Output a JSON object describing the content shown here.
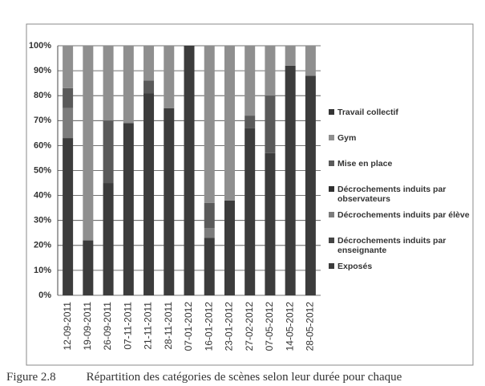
{
  "chart_data": {
    "type": "stacked_bar",
    "categories": [
      "12-09-2011",
      "19-09-2011",
      "26-09-2011",
      "07-11-2011",
      "21-11-2011",
      "28-11-2011",
      "07-01-2012",
      "16-01-2012",
      "23-01-2012",
      "27-02-2012",
      "07-05-2012",
      "14-05-2012",
      "28-05-2012"
    ],
    "series": [
      {
        "name": "Exposés",
        "color": "#3c3c3c",
        "values": [
          63,
          22,
          45,
          69,
          81,
          75,
          100,
          23,
          38,
          67,
          57,
          92,
          88
        ]
      },
      {
        "name": "Décrochements induits par enseignante",
        "color": "#444444",
        "values": [
          0,
          0,
          0,
          0,
          0,
          0,
          0,
          0,
          0,
          0,
          0,
          0,
          0
        ]
      },
      {
        "name": "Décrochements induits par élève",
        "color": "#7c7c7c",
        "values": [
          12,
          0,
          0,
          0,
          0,
          0,
          0,
          4,
          0,
          0,
          0,
          0,
          0
        ]
      },
      {
        "name": "Décrochements induits par observateurs",
        "color": "#303030",
        "values": [
          0,
          0,
          0,
          0,
          0,
          0,
          0,
          0,
          0,
          0,
          0,
          0,
          0
        ]
      },
      {
        "name": "Mise en place",
        "color": "#5a5a5a",
        "values": [
          8,
          0,
          25,
          0,
          5,
          0,
          0,
          10,
          0,
          5,
          23,
          0,
          0
        ]
      },
      {
        "name": "Gym",
        "color": "#8f8f8f",
        "values": [
          17,
          78,
          30,
          31,
          14,
          25,
          0,
          63,
          62,
          28,
          20,
          8,
          12
        ]
      },
      {
        "name": "Travail collectif",
        "color": "#353535",
        "values": [
          0,
          0,
          0,
          0,
          0,
          0,
          0,
          0,
          0,
          0,
          0,
          0,
          0
        ]
      }
    ],
    "ylim": [
      0,
      100
    ],
    "yticks": [
      {
        "value": 0,
        "label": "0%"
      },
      {
        "value": 10,
        "label": "10%"
      },
      {
        "value": 20,
        "label": "20%"
      },
      {
        "value": 30,
        "label": "30%"
      },
      {
        "value": 40,
        "label": "40%"
      },
      {
        "value": 50,
        "label": "50%"
      },
      {
        "value": 60,
        "label": "60%"
      },
      {
        "value": 70,
        "label": "70%"
      },
      {
        "value": 80,
        "label": "80%"
      },
      {
        "value": 90,
        "label": "90%"
      },
      {
        "value": 100,
        "label": "100%"
      }
    ],
    "grid": true,
    "legend": "right"
  },
  "caption": {
    "label": "Figure 2.8",
    "text": "Répartition des catégories de scènes selon leur durée pour chaque"
  }
}
